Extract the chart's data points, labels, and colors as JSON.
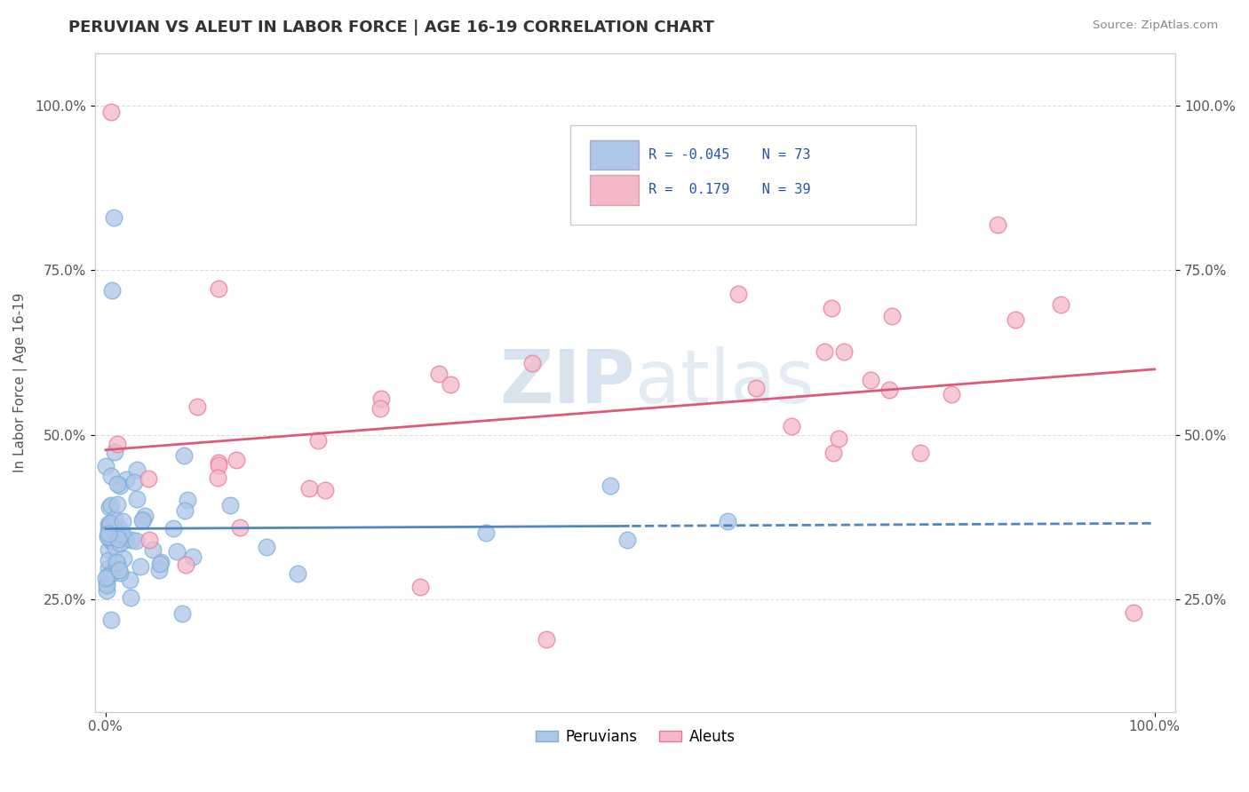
{
  "title": "PERUVIAN VS ALEUT IN LABOR FORCE | AGE 16-19 CORRELATION CHART",
  "source": "Source: ZipAtlas.com",
  "ylabel": "In Labor Force | Age 16-19",
  "peruvian_R": -0.045,
  "peruvian_N": 73,
  "aleut_R": 0.179,
  "aleut_N": 39,
  "peruvian_color": "#aec6e8",
  "aleut_color": "#f5b8c8",
  "peruvian_edge_color": "#7aadda",
  "aleut_edge_color": "#e8789a",
  "peruvian_line_color": "#4d88c4",
  "aleut_line_color": "#e05878",
  "watermark_color": "#c8d8ea",
  "background_color": "#ffffff",
  "title_color": "#333333",
  "source_color": "#888888",
  "axis_color": "#555555",
  "grid_color": "#dddddd",
  "legend_text_color": "#2255aa",
  "y_ticks": [
    0.25,
    0.5,
    0.75,
    1.0
  ],
  "x_ticks": [
    0.0,
    1.0
  ]
}
